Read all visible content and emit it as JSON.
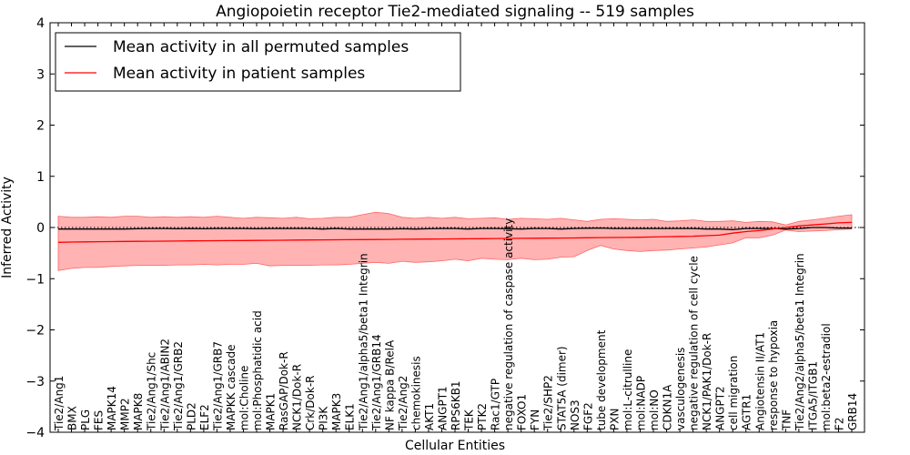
{
  "chart_data": {
    "type": "line",
    "title": "Angiopoietin receptor Tie2-mediated signaling -- 519 samples",
    "xlabel": "Cellular Entities",
    "ylabel": "Inferred Activity",
    "ylim": [
      -4,
      4
    ],
    "yticks": [
      "−4",
      "−3",
      "−2",
      "−1",
      "0",
      "1",
      "2",
      "3",
      "4"
    ],
    "legend": {
      "placement": "top-left",
      "entries": [
        "Mean activity in all permuted samples",
        "Mean activity in patient samples"
      ]
    },
    "series_colors": {
      "permuted": "#000000",
      "patient": "#ff0000",
      "band": "#ff9999"
    },
    "categories": [
      "Tie2/Ang1",
      "BMX",
      "PLG",
      "FES",
      "MAPK14",
      "MMP2",
      "MAPK8",
      "Tie2/Ang1/Shc",
      "Tie2/Ang1/ABIN2",
      "Tie2/Ang1/GRB2",
      "PLD2",
      "ELF2",
      "Tie2/Ang1/GRB7",
      "MAPKK cascade",
      "mol:Choline",
      "mol:Phosphatidic acid",
      "MAPK1",
      "RasGAP/Dok-R",
      "NCK1/Dok-R",
      "Crk/Dok-R",
      "PI3K",
      "MAPK3",
      "ELK1",
      "Tie2/Ang1/alpha5/beta1 Integrin",
      "Tie2/Ang1/GRB14",
      "NF kappa B/RelA",
      "Tie2/Ang2",
      "chemokinesis",
      "AKT1",
      "ANGPT1",
      "RPS6KB1",
      "TEK",
      "PTK2",
      "Rac1/GTP",
      "negative regulation of caspase activity",
      "FOXO1",
      "FYN",
      "Tie2/SHP2",
      "STAT5A (dimer)",
      "NOS3",
      "FGF2",
      "tube development",
      "PXN",
      "mol:L-citrulline",
      "mol:NADP",
      "mol:NO",
      "CDKN1A",
      "vasculogenesis",
      "negative regulation of cell cycle",
      "NCK1/PAK1/Dok-R",
      "ANGPT2",
      "cell migration",
      "AGTR1",
      "Angiotensin II/AT1",
      "response to hypoxia",
      "TNF",
      "Tie2/Ang2/alpha5/beta1 Integrin",
      "ITGA5/ITGB1",
      "mol:beta2-estradiol",
      "F2",
      "GRB14"
    ],
    "patient_mean": [
      -0.29,
      -0.285,
      -0.28,
      -0.278,
      -0.275,
      -0.272,
      -0.27,
      -0.268,
      -0.266,
      -0.264,
      -0.262,
      -0.26,
      -0.258,
      -0.256,
      -0.254,
      -0.252,
      -0.25,
      -0.248,
      -0.246,
      -0.244,
      -0.242,
      -0.24,
      -0.238,
      -0.236,
      -0.234,
      -0.232,
      -0.23,
      -0.228,
      -0.226,
      -0.224,
      -0.222,
      -0.22,
      -0.218,
      -0.216,
      -0.214,
      -0.212,
      -0.21,
      -0.208,
      -0.206,
      -0.204,
      -0.2,
      -0.198,
      -0.196,
      -0.194,
      -0.19,
      -0.185,
      -0.18,
      -0.175,
      -0.17,
      -0.16,
      -0.15,
      -0.11,
      -0.08,
      -0.06,
      -0.03,
      0.0,
      0.03,
      0.05,
      0.07,
      0.09,
      0.1
    ],
    "patient_upper": [
      0.22,
      0.2,
      0.2,
      0.21,
      0.2,
      0.22,
      0.22,
      0.2,
      0.21,
      0.2,
      0.21,
      0.2,
      0.22,
      0.2,
      0.18,
      0.2,
      0.19,
      0.18,
      0.2,
      0.17,
      0.18,
      0.2,
      0.2,
      0.25,
      0.3,
      0.27,
      0.2,
      0.18,
      0.2,
      0.18,
      0.2,
      0.17,
      0.18,
      0.19,
      0.16,
      0.18,
      0.17,
      0.16,
      0.18,
      0.15,
      0.12,
      0.16,
      0.17,
      0.16,
      0.15,
      0.16,
      0.12,
      0.13,
      0.15,
      0.12,
      0.12,
      0.13,
      0.1,
      0.12,
      0.11,
      0.05,
      0.12,
      0.15,
      0.18,
      0.22,
      0.25
    ],
    "patient_lower": [
      -0.84,
      -0.8,
      -0.78,
      -0.78,
      -0.76,
      -0.75,
      -0.74,
      -0.74,
      -0.74,
      -0.73,
      -0.73,
      -0.72,
      -0.73,
      -0.72,
      -0.72,
      -0.7,
      -0.75,
      -0.74,
      -0.74,
      -0.74,
      -0.73,
      -0.73,
      -0.72,
      -0.7,
      -0.68,
      -0.7,
      -0.66,
      -0.68,
      -0.67,
      -0.65,
      -0.62,
      -0.65,
      -0.6,
      -0.62,
      -0.63,
      -0.6,
      -0.63,
      -0.62,
      -0.58,
      -0.57,
      -0.45,
      -0.35,
      -0.42,
      -0.45,
      -0.47,
      -0.45,
      -0.44,
      -0.42,
      -0.4,
      -0.38,
      -0.34,
      -0.3,
      -0.2,
      -0.2,
      -0.15,
      -0.05,
      -0.08,
      -0.07,
      -0.06,
      -0.04,
      -0.03
    ],
    "permuted_mean": [
      -0.03,
      -0.03,
      -0.03,
      -0.03,
      -0.03,
      -0.03,
      -0.025,
      -0.02,
      -0.02,
      -0.025,
      -0.02,
      -0.025,
      -0.02,
      -0.02,
      -0.02,
      -0.025,
      -0.02,
      -0.02,
      -0.02,
      -0.02,
      -0.03,
      -0.02,
      -0.03,
      -0.03,
      -0.03,
      -0.03,
      -0.025,
      -0.03,
      -0.025,
      -0.02,
      -0.02,
      -0.03,
      -0.02,
      -0.02,
      -0.025,
      -0.03,
      -0.02,
      -0.02,
      -0.03,
      -0.02,
      -0.015,
      -0.01,
      -0.02,
      -0.02,
      -0.02,
      -0.02,
      -0.02,
      -0.02,
      -0.02,
      -0.03,
      -0.03,
      -0.04,
      -0.02,
      -0.02,
      -0.02,
      -0.03,
      -0.02,
      0.0,
      0.0,
      -0.01,
      -0.01
    ]
  }
}
